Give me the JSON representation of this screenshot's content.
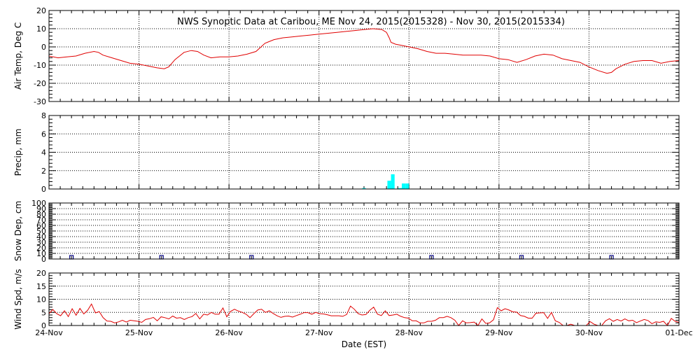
{
  "title": "NWS Synoptic Data at Caribou, ME   Nov 24, 2015(2015328) - Nov 30, 2015(2015334)",
  "xlabel": "Date (EST)",
  "x_tick_labels": [
    "24-Nov",
    "25-Nov",
    "26-Nov",
    "27-Nov",
    "28-Nov",
    "29-Nov",
    "30-Nov",
    "01-Dec"
  ],
  "colors": {
    "temp": "#e00000",
    "precip": "#00ffff",
    "snow": "#000080",
    "wind": "#e00000"
  },
  "chart_data": [
    {
      "type": "line",
      "ylabel": "Air Temp, Deg C",
      "ylim": [
        -30,
        20
      ],
      "yticks": [
        -30,
        -20,
        -10,
        0,
        10,
        20
      ],
      "x_unit": "days since 24-Nov 00:00",
      "series": [
        {
          "x": [
            0,
            0.1,
            0.2,
            0.3,
            0.4,
            0.5,
            0.55,
            0.6,
            0.7,
            0.8,
            0.9,
            1.0,
            1.1,
            1.2,
            1.28,
            1.33,
            1.4,
            1.5,
            1.58,
            1.65,
            1.72,
            1.8,
            1.9,
            2.0,
            2.1,
            2.2,
            2.3,
            2.4,
            2.5,
            2.6,
            2.7,
            2.8,
            2.9,
            3.0,
            3.1,
            3.2,
            3.3,
            3.4,
            3.5,
            3.6,
            3.7,
            3.75,
            3.78,
            3.8,
            3.85,
            3.9,
            4.0,
            4.1,
            4.2,
            4.3,
            4.4,
            4.5,
            4.6,
            4.7,
            4.8,
            4.9,
            5.0,
            5.1,
            5.2,
            5.3,
            5.4,
            5.5,
            5.6,
            5.7,
            5.8,
            5.9,
            6.0,
            6.1,
            6.2,
            6.25,
            6.3,
            6.4,
            6.5,
            6.6,
            6.7,
            6.8,
            6.9,
            7.0
          ],
          "y": [
            -5,
            -6,
            -5.5,
            -5,
            -3.5,
            -2.5,
            -3,
            -4.5,
            -6,
            -7.5,
            -9,
            -9.5,
            -10.5,
            -11.5,
            -12,
            -11,
            -7,
            -3,
            -2,
            -2.5,
            -4.5,
            -6,
            -5.5,
            -5.5,
            -5,
            -4,
            -2.5,
            2,
            4,
            5,
            5.5,
            6,
            6.5,
            7,
            7.5,
            8,
            8.5,
            9,
            9.5,
            10,
            9.5,
            8,
            5,
            2.5,
            1.5,
            1,
            0,
            -1,
            -2.5,
            -3.5,
            -3.5,
            -4,
            -4.5,
            -4.5,
            -4.5,
            -5,
            -6.5,
            -7,
            -8.5,
            -7,
            -5,
            -4,
            -4.5,
            -6.5,
            -7.5,
            -8.5,
            -11,
            -13,
            -14.5,
            -14,
            -12,
            -9.5,
            -8,
            -7.5,
            -7.5,
            -9,
            -8,
            -7.5
          ]
        }
      ]
    },
    {
      "type": "bar",
      "ylabel": "Precip, mm",
      "ylim": [
        0,
        8
      ],
      "yticks": [
        0,
        2,
        4,
        6,
        8
      ],
      "bar_width_days": 0.04,
      "x": [
        3.48,
        3.76,
        3.8,
        3.88,
        3.92,
        3.96
      ],
      "values": [
        0.1,
        0.9,
        1.6,
        0.1,
        0.6,
        0.6
      ]
    },
    {
      "type": "scatter",
      "ylabel": "Snow Dep, cm",
      "ylim": [
        0,
        100
      ],
      "yticks": [
        0,
        10,
        20,
        30,
        40,
        50,
        60,
        70,
        80,
        90,
        100
      ],
      "x": [
        0.25,
        1.25,
        2.25,
        4.25,
        5.25,
        6.25
      ],
      "values": [
        0,
        0,
        0,
        0,
        0,
        0
      ]
    },
    {
      "type": "line",
      "ylabel": "Wind Spd, m/s",
      "ylim": [
        0,
        20
      ],
      "yticks": [
        0,
        5,
        10,
        15,
        20
      ],
      "series": [
        {
          "y": [
            4.5,
            6.1,
            4.5,
            3.7,
            5.6,
            3.4,
            6.4,
            3.9,
            6.5,
            4.4,
            5.8,
            8.2,
            4.8,
            5.3,
            3.0,
            1.7,
            1.6,
            1.0,
            1.4,
            2.0,
            1.3,
            2.0,
            1.8,
            1.6,
            1.2,
            2.3,
            2.6,
            3.1,
            1.8,
            3.3,
            3.0,
            2.5,
            3.6,
            2.8,
            3.0,
            2.3,
            3.0,
            3.4,
            4.6,
            2.5,
            4.3,
            4.0,
            5.0,
            4.3,
            4.3,
            6.7,
            3.3,
            5.4,
            6.2,
            5.5,
            5.0,
            4.3,
            3.0,
            4.5,
            5.9,
            6.2,
            5.0,
            5.6,
            4.6,
            3.7,
            3.1,
            3.5,
            3.6,
            3.2,
            3.8,
            4.3,
            4.9,
            4.9,
            4.3,
            5.0,
            4.5,
            4.4,
            4.1,
            3.7,
            3.7,
            3.7,
            3.5,
            4.2,
            7.4,
            6.2,
            4.5,
            4.0,
            4.2,
            5.8,
            7.0,
            4.3,
            3.8,
            5.6,
            3.8,
            4.0,
            4.3,
            3.5,
            3.0,
            2.8,
            1.8,
            1.8,
            1.0,
            1.0,
            1.6,
            1.6,
            2.0,
            3.0,
            3.0,
            3.5,
            3.0,
            2.0,
            0.0,
            1.8,
            1.0,
            1.1,
            1.3,
            0.0,
            2.5,
            0.8,
            1.0,
            2.2,
            6.8,
            5.6,
            6.4,
            5.9,
            5.2,
            5.1,
            3.8,
            3.5,
            2.8,
            2.8,
            4.7,
            4.8,
            4.9,
            2.7,
            5.0,
            1.8,
            1.2,
            0.0,
            0.0,
            0.5,
            0.0,
            0.0,
            0.0,
            0.0,
            1.5,
            0.5,
            0.0,
            0.0,
            1.8,
            2.6,
            1.6,
            2.3,
            1.7,
            2.5,
            1.8,
            2.0,
            1.1,
            1.7,
            2.3,
            1.9,
            0.7,
            1.4,
            1.2,
            1.6,
            0.0,
            2.7,
            1.6,
            1.2
          ]
        }
      ]
    }
  ]
}
